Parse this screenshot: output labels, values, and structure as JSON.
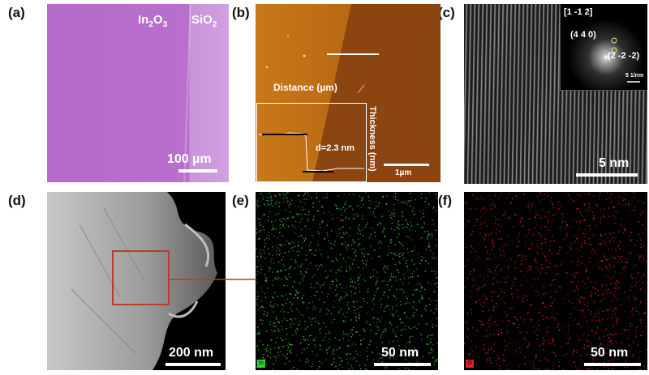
{
  "panels": {
    "a": {
      "label": "(a)",
      "material": "In",
      "material_sub": "2",
      "material_end": "O",
      "material_sub2": "3",
      "substrate": "SiO",
      "substrate_sub": "2",
      "scale": "100 µm"
    },
    "b": {
      "label": "(b)",
      "inset_xlabel": "Distance (µm)",
      "inset_ylabel": "Thickness (nm)",
      "thickness": "d=2.3 nm",
      "scale": "1µm"
    },
    "c": {
      "label": "(c)",
      "zone_axis": "[1 -1 2]",
      "spot1": "(4 4 0)",
      "spot2": "(2 -2 -2)",
      "fft_scale": "5 1/nm",
      "scale": "5 nm"
    },
    "d": {
      "label": "(d)",
      "scale": "200 nm"
    },
    "e": {
      "label": "(e)",
      "element": "In",
      "scale": "50 nm",
      "color": "#33cc33"
    },
    "f": {
      "label": "(f)",
      "element": "O",
      "scale": "50 nm",
      "color": "#dd2222"
    }
  },
  "colors": {
    "optical": "#b86fcd",
    "afm_dark": "#c87416",
    "afm_light": "#8a4410",
    "roi_box": "#c0392b"
  }
}
